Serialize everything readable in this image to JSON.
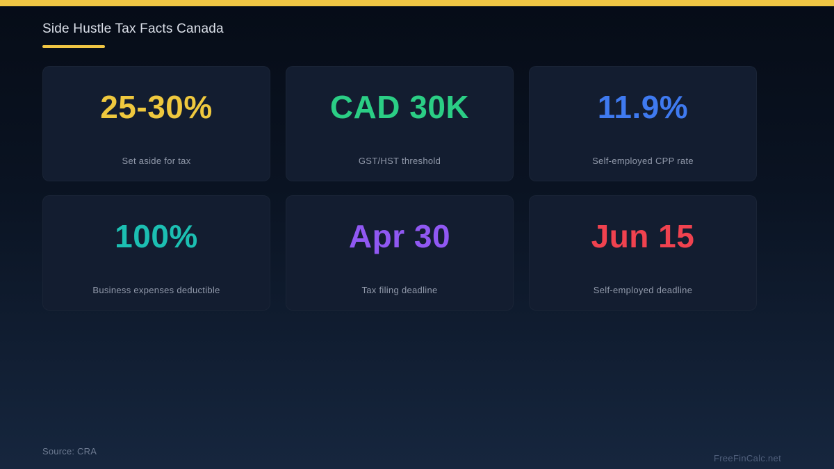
{
  "page": {
    "title": "Side Hustle Tax Facts Canada",
    "source": "Source: CRA",
    "watermark": "FreeFinCalc.net",
    "accent_color": "#f0c644"
  },
  "stats": [
    {
      "value": "25-30%",
      "label": "Set aside for tax",
      "color": "#efc83e"
    },
    {
      "value": "CAD 30K",
      "label": "GST/HST threshold",
      "color": "#2bce85"
    },
    {
      "value": "11.9%",
      "label": "Self-employed CPP rate",
      "color": "#3f7af0"
    },
    {
      "value": "100%",
      "label": "Business expenses deductible",
      "color": "#1cbfb2"
    },
    {
      "value": "Apr 30",
      "label": "Tax filing deadline",
      "color": "#9058f2"
    },
    {
      "value": "Jun 15",
      "label": "Self-employed deadline",
      "color": "#f0424f"
    }
  ],
  "chart_data": {
    "type": "table",
    "title": "Side Hustle Tax Facts Canada",
    "columns": [
      "value",
      "label"
    ],
    "rows": [
      [
        "25-30%",
        "Set aside for tax"
      ],
      [
        "CAD 30K",
        "GST/HST threshold"
      ],
      [
        "11.9%",
        "Self-employed CPP rate"
      ],
      [
        "100%",
        "Business expenses deductible"
      ],
      [
        "Apr 30",
        "Tax filing deadline"
      ],
      [
        "Jun 15",
        "Self-employed deadline"
      ]
    ],
    "source": "CRA",
    "layout": "3x2 stat card grid, dark navy background"
  }
}
